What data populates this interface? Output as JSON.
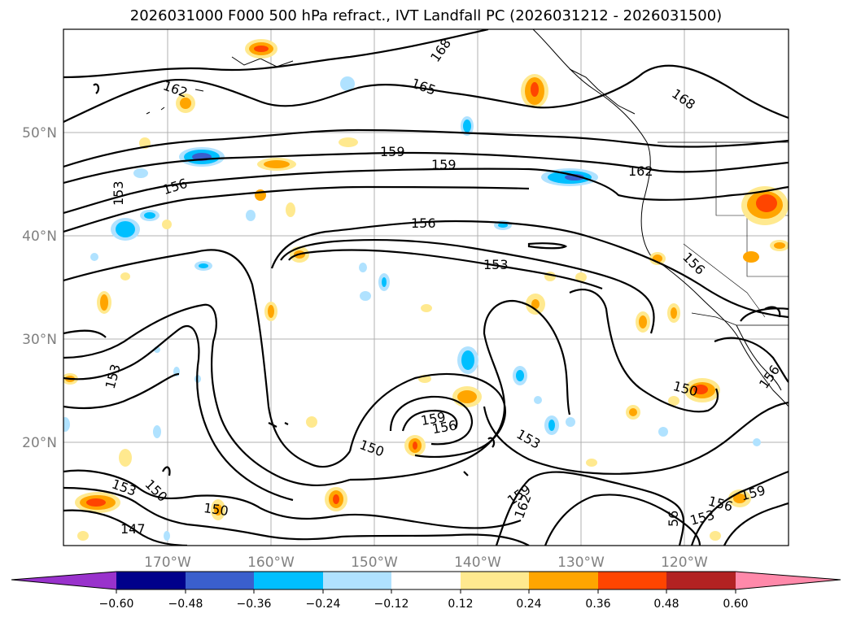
{
  "title": "2026031000 F000 500 hPa refract., IVT Landfall PC (2026031212 - 2026031500)",
  "map": {
    "lat_labels": [
      "50°N",
      "40°N",
      "30°N",
      "20°N"
    ],
    "lon_labels": [
      "170°W",
      "160°W",
      "150°W",
      "140°W",
      "130°W",
      "120°W"
    ],
    "grid": true,
    "contour_labels": [
      "168",
      "165",
      "162",
      "168",
      "159",
      "159",
      "156",
      "162",
      "153",
      "156",
      "153",
      "156",
      "153",
      "150",
      "159",
      "156",
      "150",
      "153",
      "159",
      "162",
      "156",
      "153",
      "159",
      "156",
      "153",
      "150",
      "150",
      "147",
      "56"
    ]
  },
  "colorbar": {
    "ticks": [
      "−0.60",
      "−0.48",
      "−0.36",
      "−0.24",
      "−0.12",
      "0.12",
      "0.24",
      "0.36",
      "0.48",
      "0.60"
    ],
    "colors": [
      "#9932cc",
      "#00008b",
      "#3a5fcd",
      "#00bfff",
      "#b0e2ff",
      "#ffffff",
      "#ffe98f",
      "#ffa500",
      "#ff4500",
      "#b22222",
      "#ff89aa"
    ]
  }
}
